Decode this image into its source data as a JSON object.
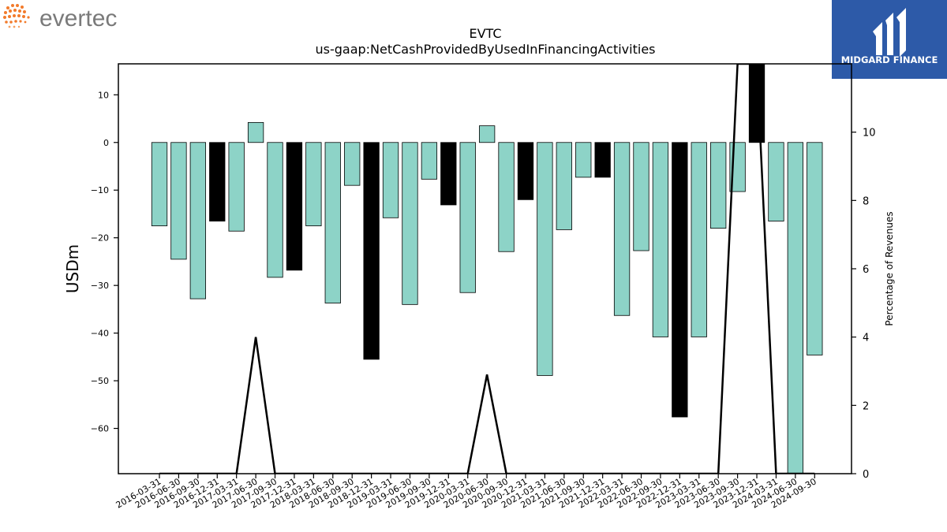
{
  "brand": {
    "left_logo_text": "evertec",
    "right_logo_text": "MIDGARD FINANCE",
    "accent_orange": "#f27b2b",
    "logo_text_gray": "#7a7a7a",
    "midgard_blue": "#2d5aa8"
  },
  "chart_data": {
    "type": "bar",
    "title": "EVTC",
    "subtitle": "us-gaap:NetCashProvidedByUsedInFinancingActivities",
    "ylabel": "USDm",
    "y2label": "Percentage of Revenues",
    "ylim": [
      -69.5,
      16.5
    ],
    "y2lim": [
      0,
      12
    ],
    "yticks": [
      10,
      0,
      -10,
      -20,
      -30,
      -40,
      -50,
      -60
    ],
    "y2ticks": [
      0,
      2,
      4,
      6,
      8,
      10
    ],
    "colors": {
      "positive_yoy": "#8dd3c7",
      "negative_yoy": "#000000",
      "edge": "#000000",
      "line": "#000000"
    },
    "categories": [
      "2016-03-31",
      "2016-06-30",
      "2016-09-30",
      "2016-12-31",
      "2017-03-31",
      "2017-06-30",
      "2017-09-30",
      "2017-12-31",
      "2018-03-31",
      "2018-06-30",
      "2018-09-30",
      "2018-12-31",
      "2019-03-31",
      "2019-06-30",
      "2019-09-30",
      "2019-12-31",
      "2020-03-31",
      "2020-06-30",
      "2020-09-30",
      "2020-12-31",
      "2021-03-31",
      "2021-06-30",
      "2021-09-30",
      "2021-12-31",
      "2022-03-31",
      "2022-06-30",
      "2022-09-30",
      "2022-12-31",
      "2023-03-31",
      "2023-06-30",
      "2023-09-30",
      "2023-12-31",
      "2024-03-31",
      "2024-06-30",
      "2024-09-30"
    ],
    "values": [
      -17.5,
      -24.5,
      -32.8,
      -16.5,
      -18.6,
      4.2,
      -28.3,
      -26.8,
      -17.5,
      -33.7,
      -9.0,
      -45.5,
      -15.8,
      -34.0,
      -7.7,
      -13.1,
      -31.5,
      3.5,
      -22.9,
      -12.0,
      -48.9,
      -18.3,
      -7.3,
      -7.3,
      -36.3,
      -22.7,
      -40.8,
      -57.6,
      -40.8,
      -18.0,
      -10.3,
      16.5,
      -16.5,
      -69.5,
      -44.6
    ],
    "bar_colors": [
      "teal",
      "teal",
      "teal",
      "black",
      "teal",
      "teal",
      "teal",
      "black",
      "teal",
      "teal",
      "teal",
      "black",
      "teal",
      "teal",
      "teal",
      "black",
      "teal",
      "teal",
      "teal",
      "black",
      "teal",
      "teal",
      "teal",
      "black",
      "teal",
      "teal",
      "teal",
      "black",
      "teal",
      "teal",
      "teal",
      "black",
      "teal",
      "teal",
      "teal"
    ],
    "percent_of_revenues": [
      0,
      0,
      0,
      0,
      0,
      4.0,
      0,
      0,
      0,
      0,
      0,
      0,
      0,
      0,
      0,
      0,
      0,
      2.9,
      0,
      0,
      0,
      0,
      0,
      0,
      0,
      0,
      0,
      0,
      0,
      0,
      12,
      12,
      0,
      0,
      0
    ]
  }
}
